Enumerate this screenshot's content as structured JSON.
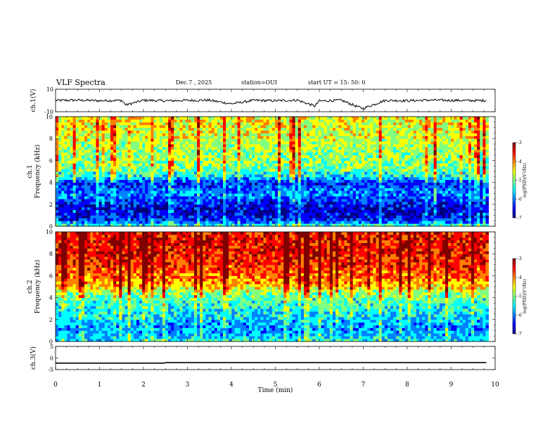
{
  "header": {
    "title": "VLF Spectra",
    "date": "Dec.7 , 2025",
    "station": "station=OUI",
    "start": "start UT = 15: 50: 0"
  },
  "colors": {
    "colormap": [
      "#00007f",
      "#0000ff",
      "#0080ff",
      "#00ffff",
      "#80ff80",
      "#ffff00",
      "#ff8000",
      "#ff0000",
      "#800000"
    ],
    "trace": "#000000"
  },
  "chart_data": [
    {
      "type": "line",
      "panel": "ch1-waveform",
      "ylabel": "ch.1(V)",
      "ylim": [
        -10,
        10
      ],
      "yticks": [
        "10",
        "-10"
      ],
      "x": [
        0,
        0.5,
        1,
        1.5,
        1.6,
        2,
        2.5,
        3,
        3.5,
        4,
        4.5,
        5,
        5.5,
        5.9,
        6,
        6.5,
        6.9,
        7,
        7.5,
        8,
        8.5,
        9,
        9.5,
        9.8
      ],
      "y": [
        0,
        0.3,
        -0.2,
        0.1,
        -4,
        0.2,
        -0.3,
        0.1,
        0.2,
        -3,
        0.1,
        -0.2,
        0.3,
        -5,
        -0.5,
        0.2,
        -6,
        -7,
        0.1,
        -0.2,
        0.3,
        0.1,
        -0.1,
        0
      ]
    },
    {
      "type": "heatmap",
      "panel": "ch1-spectrogram",
      "ylabel": "ch.1 Frequency (kHz)",
      "ylim": [
        0,
        10
      ],
      "yticks": [
        "0",
        "2",
        "4",
        "6",
        "8",
        "10"
      ],
      "colorbar": {
        "label": "log(PSD)(V²/Hz)",
        "range": [
          -7,
          -3
        ],
        "ticks": [
          "-3",
          "-4",
          "-5",
          "-6",
          "-7"
        ]
      },
      "freq_bands_khz": [
        0,
        0.5,
        1,
        1.5,
        2,
        2.5,
        3,
        3.5,
        4,
        4.5,
        5,
        5.5,
        6,
        6.5,
        7,
        7.5,
        8,
        8.5,
        9,
        9.5,
        10
      ],
      "log_psd_profile": [
        -5.2,
        -6.3,
        -6.6,
        -6.7,
        -6.6,
        -6.2,
        -6.0,
        -6.2,
        -6.4,
        -5.6,
        -5.2,
        -5.0,
        -4.9,
        -4.9,
        -4.8,
        -4.8,
        -4.7,
        -4.7,
        -4.6,
        -4.6,
        -4.6
      ]
    },
    {
      "type": "heatmap",
      "panel": "ch2-spectrogram",
      "ylabel": "ch.2 Frequency (kHz)",
      "ylim": [
        0,
        10
      ],
      "yticks": [
        "0",
        "2",
        "4",
        "6",
        "8",
        "10"
      ],
      "colorbar": {
        "label": "log(PSD)(V²/Hz)",
        "range": [
          -7,
          -3
        ],
        "ticks": [
          "-3",
          "-4",
          "-5",
          "-6",
          "-7"
        ]
      },
      "freq_bands_khz": [
        0,
        0.5,
        1,
        1.5,
        2,
        2.5,
        3,
        3.5,
        4,
        4.5,
        5,
        5.5,
        6,
        6.5,
        7,
        7.5,
        8,
        8.5,
        9,
        9.5,
        10
      ],
      "log_psd_profile": [
        -5.4,
        -5.8,
        -5.9,
        -5.9,
        -5.7,
        -5.6,
        -5.4,
        -5.3,
        -5.2,
        -4.9,
        -4.3,
        -4.1,
        -3.9,
        -3.8,
        -3.7,
        -3.6,
        -3.5,
        -3.5,
        -3.5,
        -3.5,
        -3.5
      ]
    },
    {
      "type": "line",
      "panel": "ch3-waveform",
      "ylabel": "ch.3(V)",
      "ylim": [
        -5,
        5
      ],
      "yticks": [
        "5",
        "0",
        "-5"
      ],
      "x": [
        0,
        2.5,
        2.5,
        9.8
      ],
      "y": [
        -2.2,
        -2.2,
        -2.0,
        -2.0
      ]
    },
    {
      "type": "axis",
      "panel": "time-axis",
      "xlabel": "Time (min)",
      "xlim": [
        0,
        10
      ],
      "xticks": [
        "0",
        "1",
        "2",
        "3",
        "4",
        "5",
        "6",
        "7",
        "8",
        "9",
        "10"
      ]
    }
  ]
}
